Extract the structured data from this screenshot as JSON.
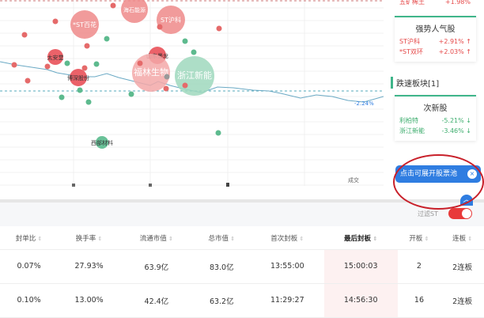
{
  "chart": {
    "line_end_label": "-2.24%",
    "x_axis_label": "成交",
    "bubbles": [
      {
        "label": "海石能源",
        "color": "#ef8a8a"
      },
      {
        "label": "*ST百花",
        "color": "#ef8a8a"
      },
      {
        "label": "ST沪科",
        "color": "#ef8a8a"
      },
      {
        "label": "太安堂",
        "color": "#e8474f"
      },
      {
        "label": "山东墨龙",
        "color": "#e8474f"
      },
      {
        "label": "博深股份",
        "color": "#e8474f"
      },
      {
        "label": "福林生物",
        "color": "#f3a8a8"
      },
      {
        "label": "浙江新能",
        "color": "#9fd8bd"
      },
      {
        "label": "西部材料",
        "color": "#4fb686"
      }
    ]
  },
  "side": {
    "top_item": {
      "name": "五矿稀土",
      "change": "+1.98%"
    },
    "strong": {
      "title": "强势人气股",
      "items": [
        {
          "name": "ST沪科",
          "change": "+2.91%"
        },
        {
          "name": "*ST双环",
          "change": "+2.03%"
        }
      ]
    },
    "fall_section": "跌速板块[1]",
    "fall": {
      "title": "次新股",
      "items": [
        {
          "name": "利柏特",
          "change": "-5.21%"
        },
        {
          "name": "浙江新能",
          "change": "-3.46%"
        }
      ]
    },
    "tooltip": "点击可展开股票池",
    "up_arrow": "^"
  },
  "toolbar": {
    "filter_st": "过滤ST",
    "filter_on": true
  },
  "table": {
    "headers": [
      "封单比",
      "换手率",
      "流通市值",
      "总市值",
      "首次封板",
      "最后封板",
      "开板",
      "连板"
    ],
    "sorted_col": "最后封板",
    "rows": [
      [
        "0.07%",
        "27.93%",
        "63.9亿",
        "83.0亿",
        "13:55:00",
        "15:00:03",
        "2",
        "2连板"
      ],
      [
        "0.10%",
        "13.00%",
        "42.4亿",
        "63.2亿",
        "11:29:27",
        "14:56:30",
        "16",
        "2连板"
      ]
    ]
  }
}
